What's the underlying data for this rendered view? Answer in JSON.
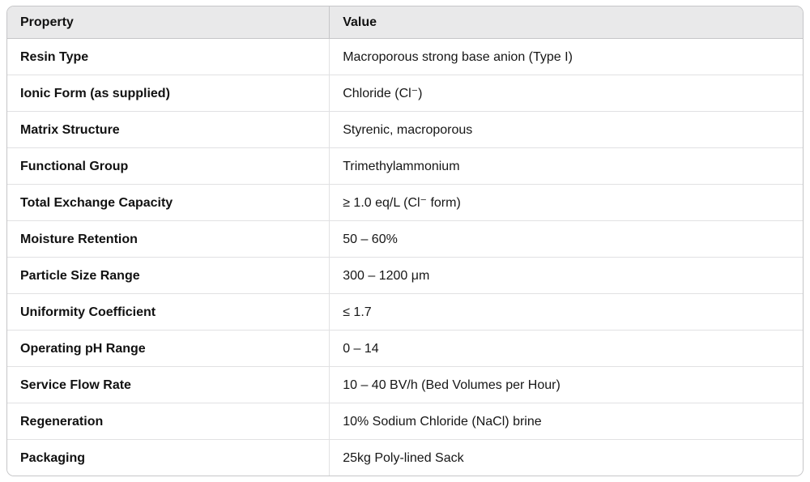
{
  "colors": {
    "header_bg": "#e9e9ea",
    "outer_border": "#c6c6c8",
    "row_divider": "#e1e1e3",
    "text": "#111111",
    "page_bg": "#ffffff"
  },
  "table": {
    "columns": {
      "property": "Property",
      "value": "Value"
    },
    "rows": [
      {
        "property": "Resin Type",
        "value": "Macroporous strong base anion (Type I)"
      },
      {
        "property": "Ionic Form (as supplied)",
        "value": "Chloride (Cl⁻)"
      },
      {
        "property": "Matrix Structure",
        "value": "Styrenic, macroporous"
      },
      {
        "property": "Functional Group",
        "value": "Trimethylammonium"
      },
      {
        "property": "Total Exchange Capacity",
        "value": "≥ 1.0 eq/L (Cl⁻ form)"
      },
      {
        "property": "Moisture Retention",
        "value": "50 – 60%"
      },
      {
        "property": "Particle Size Range",
        "value": "300 – 1200 μm"
      },
      {
        "property": "Uniformity Coefficient",
        "value": "≤ 1.7"
      },
      {
        "property": "Operating pH Range",
        "value": "0 – 14"
      },
      {
        "property": "Service Flow Rate",
        "value": "10 – 40 BV/h (Bed Volumes per Hour)"
      },
      {
        "property": "Regeneration",
        "value": "10% Sodium Chloride (NaCl) brine"
      },
      {
        "property": "Packaging",
        "value": "25kg Poly-lined Sack"
      }
    ]
  }
}
